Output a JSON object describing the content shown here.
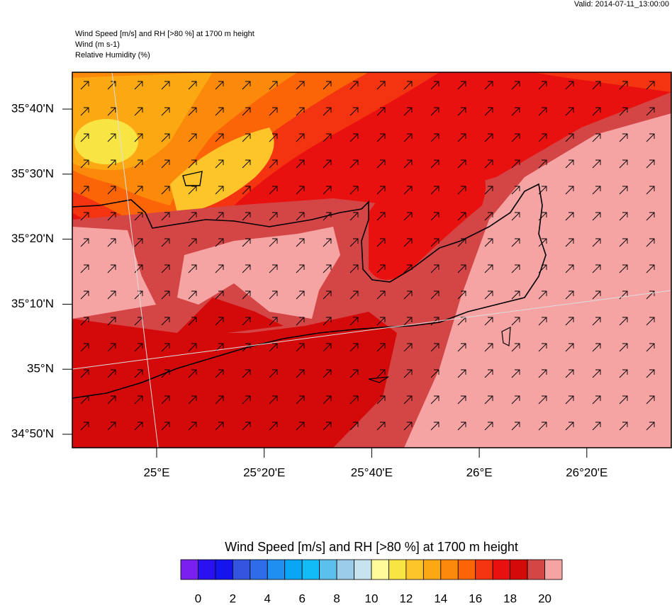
{
  "valid": "Valid: 2014-07-11_13:00:00",
  "header": [
    "Wind Speed [m/s] and RH [>80 %] at 1700 m height",
    "Wind   (m s-1)",
    "Relative Humidity   (%)"
  ],
  "lat_labels": [
    "35°40'N",
    "35°30'N",
    "35°20'N",
    "35°10'N",
    "35°N",
    "34°50'N"
  ],
  "lon_labels": [
    "25°E",
    "25°20'E",
    "25°40'E",
    "26°E",
    "26°20'E"
  ],
  "colorbar": {
    "title": "Wind Speed [m/s] and RH [>80 %] at 1700 m height",
    "colors": [
      "#7a1ff0",
      "#2a12f0",
      "#1414ee",
      "#3355e0",
      "#2f6de8",
      "#1f8ff0",
      "#0aa6f5",
      "#12bcf5",
      "#5cc0ee",
      "#9ccde8",
      "#c7e3f0",
      "#fffb9a",
      "#f8e443",
      "#fdc52a",
      "#fca812",
      "#fb8a0b",
      "#fb6508",
      "#f43410",
      "#e8110f",
      "#d40a0a",
      "#d44546",
      "#f6a3a3"
    ],
    "labels": [
      "0",
      "2",
      "4",
      "6",
      "8",
      "10",
      "12",
      "14",
      "16",
      "18",
      "20"
    ]
  }
}
